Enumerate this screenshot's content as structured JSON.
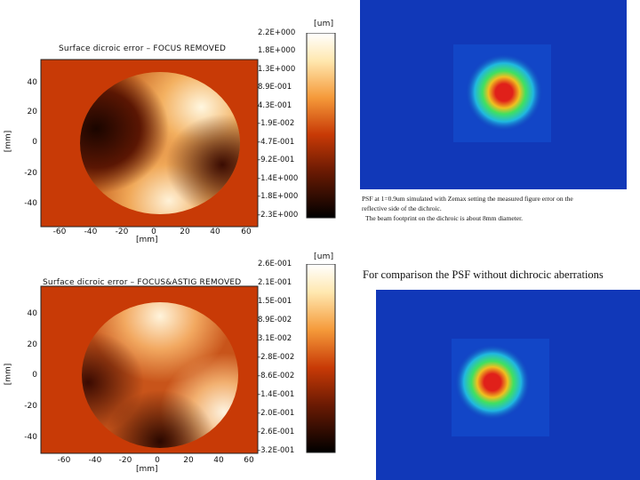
{
  "panels": [
    {
      "title": "Surface dicroic error – FOCUS REMOVED",
      "ylabel": "[mm]",
      "xlabel": "[mm]",
      "yticks": [
        "40",
        "20",
        "0",
        "-20",
        "-40"
      ],
      "xticks": [
        "-60",
        "-40",
        "-20",
        "0",
        "20",
        "40",
        "60"
      ],
      "colorbar": {
        "unit": "[um]",
        "ticks": [
          "2.2E+000",
          "1.8E+000",
          "1.3E+000",
          "8.9E-001",
          "4.3E-001",
          "-1.9E-002",
          "-4.7E-001",
          "-9.2E-001",
          "-1.4E+000",
          "-1.8E+000",
          "-2.3E+000"
        ]
      }
    },
    {
      "title": "Surface dicroic error – FOCUS&ASTIG REMOVED",
      "ylabel": "[mm]",
      "xlabel": "[mm]",
      "yticks": [
        "40",
        "20",
        "0",
        "-20",
        "-40"
      ],
      "xticks": [
        "-60",
        "-40",
        "-20",
        "0",
        "20",
        "40",
        "60"
      ],
      "colorbar": {
        "unit": "[um]",
        "ticks": [
          "2.6E-001",
          "2.1E-001",
          "1.5E-001",
          "8.9E-002",
          "3.1E-002",
          "-2.8E-002",
          "-8.6E-002",
          "-1.4E-001",
          "-2.0E-001",
          "-2.6E-001",
          "-3.2E-001"
        ]
      }
    }
  ],
  "captions": {
    "psf1_line1": "PSF at 1=0.9um simulated with Zemax setting the measured figure error on the",
    "psf1_line2": "reflective side of the dichroic.",
    "psf1_line3": "The beam footprint on the dichroic is about 8mm diameter.",
    "psf2": "For comparison the PSF without dichrocic aberrations"
  },
  "colors": {
    "map_background": "#c83a06",
    "psf_background": "#1138b8",
    "psf_core": "#e0201a"
  }
}
